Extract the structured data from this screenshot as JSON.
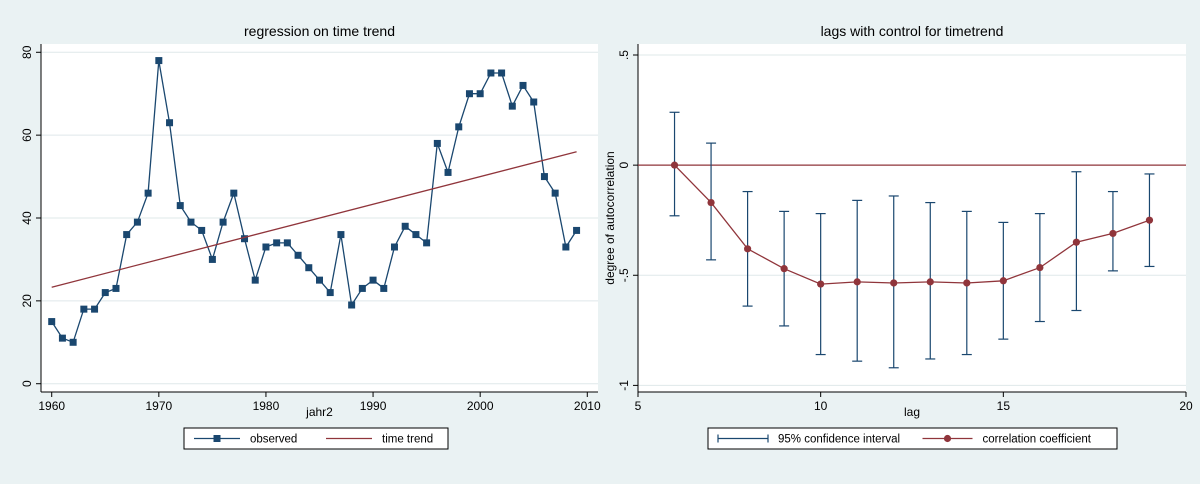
{
  "colors": {
    "background": "#eaf2f3",
    "plot_background": "#ffffff",
    "grid": "#dfe8ea",
    "observed": "#1a476f",
    "trend": "#90353b",
    "ci": "#1a476f",
    "coefficient": "#90353b",
    "zero_line": "#90353b"
  },
  "chart_data": [
    {
      "type": "line",
      "title": "regression on time trend",
      "xlabel": "jahr2",
      "ylabel": "",
      "xlim": [
        1959,
        2011
      ],
      "ylim": [
        -2,
        82
      ],
      "xticks": [
        "1960",
        "1970",
        "1980",
        "1990",
        "2000",
        "2010"
      ],
      "xtick_values": [
        1960,
        1970,
        1980,
        1990,
        2000,
        2010
      ],
      "yticks": [
        "0",
        "20",
        "40",
        "60",
        "80"
      ],
      "ytick_values": [
        0,
        20,
        40,
        60,
        80
      ],
      "grid": true,
      "legend_position": "bottom",
      "series": [
        {
          "name": "observed",
          "marker": "square",
          "x": [
            1960,
            1961,
            1962,
            1963,
            1964,
            1965,
            1966,
            1967,
            1968,
            1969,
            1970,
            1971,
            1972,
            1973,
            1974,
            1975,
            1976,
            1977,
            1978,
            1979,
            1980,
            1981,
            1982,
            1983,
            1984,
            1985,
            1986,
            1987,
            1988,
            1989,
            1990,
            1991,
            1992,
            1993,
            1994,
            1995,
            1996,
            1997,
            1998,
            1999,
            2000,
            2001,
            2002,
            2003,
            2004,
            2005,
            2006,
            2007,
            2008,
            2009
          ],
          "values": [
            15,
            11,
            10,
            18,
            18,
            22,
            23,
            36,
            39,
            46,
            78,
            63,
            43,
            39,
            37,
            30,
            39,
            46,
            35,
            25,
            33,
            34,
            34,
            31,
            28,
            25,
            22,
            36,
            19,
            23,
            25,
            23,
            33,
            38,
            36,
            34,
            58,
            51,
            62,
            70,
            70,
            75,
            75,
            67,
            72,
            68,
            50,
            46,
            33,
            37
          ]
        },
        {
          "name": "time trend",
          "marker": "none",
          "x": [
            1960,
            2009
          ],
          "values": [
            23.3,
            56
          ]
        }
      ]
    },
    {
      "type": "line",
      "title": "lags with control for timetrend",
      "xlabel": "lag",
      "ylabel": "degree of autocorrelation",
      "xlim": [
        5,
        20
      ],
      "ylim": [
        -1.03,
        0.55
      ],
      "xticks": [
        "5",
        "10",
        "15",
        "20"
      ],
      "xtick_values": [
        5,
        10,
        15,
        20
      ],
      "yticks": [
        "-1",
        "-.5",
        "0",
        ".5"
      ],
      "ytick_values": [
        -1,
        -0.5,
        0,
        0.5
      ],
      "grid": true,
      "legend_position": "bottom",
      "reference_line_y": 0,
      "series": [
        {
          "name": "95% confidence interval",
          "type": "errorbar",
          "x": [
            6,
            7,
            8,
            9,
            10,
            11,
            12,
            13,
            14,
            15,
            16,
            17,
            18,
            19
          ],
          "lower": [
            -0.23,
            -0.43,
            -0.64,
            -0.73,
            -0.86,
            -0.89,
            -0.92,
            -0.88,
            -0.86,
            -0.79,
            -0.71,
            -0.66,
            -0.48,
            -0.46
          ],
          "upper": [
            0.24,
            0.1,
            -0.12,
            -0.21,
            -0.22,
            -0.16,
            -0.14,
            -0.17,
            -0.21,
            -0.26,
            -0.22,
            -0.03,
            -0.12,
            -0.04
          ]
        },
        {
          "name": "correlation coefficient",
          "marker": "circle",
          "x": [
            6,
            7,
            8,
            9,
            10,
            11,
            12,
            13,
            14,
            15,
            16,
            17,
            18,
            19
          ],
          "values": [
            0.0,
            -0.17,
            -0.38,
            -0.47,
            -0.54,
            -0.53,
            -0.535,
            -0.53,
            -0.535,
            -0.525,
            -0.465,
            -0.35,
            -0.31,
            -0.25
          ]
        }
      ]
    }
  ]
}
